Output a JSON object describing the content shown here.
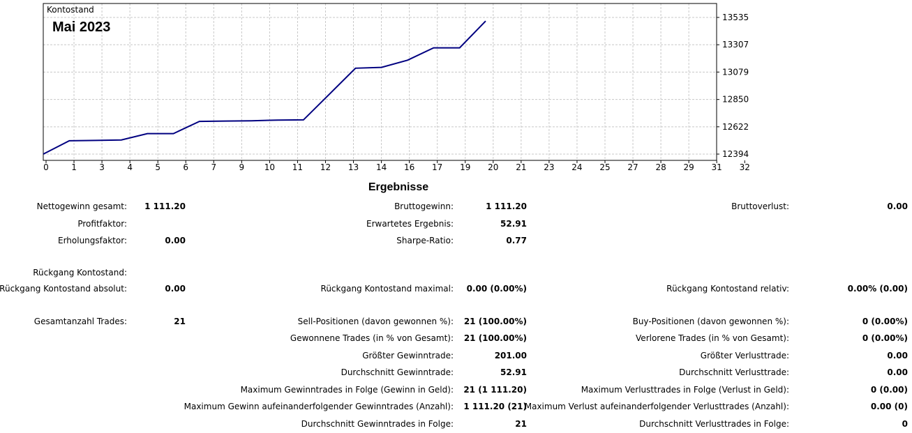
{
  "chart": {
    "caption": "Kontostand",
    "period": "Mai 2023",
    "line_color": "#000080",
    "grid_color": "#c8c8c8"
  },
  "chart_data": {
    "type": "line",
    "title": "Kontostand",
    "subtitle": "Mai 2023",
    "xlim": [
      0,
      32
    ],
    "ylim": [
      12394,
      13535
    ],
    "x_ticks": [
      "0",
      "1",
      "3",
      "4",
      "5",
      "6",
      "7",
      "9",
      "10",
      "11",
      "12",
      "13",
      "14",
      "16",
      "17",
      "19",
      "20",
      "21",
      "23",
      "24",
      "25",
      "27",
      "28",
      "29",
      "31",
      "32"
    ],
    "y_ticks": [
      "13535",
      "13307",
      "13079",
      "12850",
      "12622",
      "12394"
    ],
    "grid": true,
    "series": [
      {
        "values": [
          [
            0,
            12394
          ],
          [
            1,
            12505
          ],
          [
            2,
            12508
          ],
          [
            3,
            12512
          ],
          [
            4,
            12565
          ],
          [
            5,
            12565
          ],
          [
            6,
            12667
          ],
          [
            7,
            12670
          ],
          [
            8,
            12672
          ],
          [
            9,
            12678
          ],
          [
            10,
            12680
          ],
          [
            11,
            12895
          ],
          [
            12,
            13111
          ],
          [
            13,
            13118
          ],
          [
            14,
            13178
          ],
          [
            15,
            13281
          ],
          [
            16,
            13281
          ],
          [
            17,
            13505
          ]
        ]
      }
    ]
  },
  "results": {
    "title": "Ergebnisse",
    "col1": [
      {
        "label": "Nettogewinn gesamt:",
        "value": "1 111.20"
      },
      {
        "label": "Profitfaktor:",
        "value": ""
      },
      {
        "label": "Erholungsfaktor:",
        "value": "0.00"
      },
      {
        "label": "Rückgang Kontostand:",
        "value": ""
      },
      {
        "label": "Rückgang Kontostand absolut:",
        "value": "0.00"
      },
      {
        "label": "Gesamtanzahl Trades:",
        "value": "21"
      }
    ],
    "col2": [
      {
        "label": "Bruttogewinn:",
        "value": "1 111.20"
      },
      {
        "label": "Erwartetes Ergebnis:",
        "value": "52.91"
      },
      {
        "label": "Sharpe-Ratio:",
        "value": "0.77"
      },
      {
        "label": "Rückgang Kontostand maximal:",
        "value": "0.00 (0.00%)"
      },
      {
        "label": "Sell-Positionen (davon gewonnen %):",
        "value": "21 (100.00%)"
      },
      {
        "label": "Gewonnene Trades (in % von Gesamt):",
        "value": "21 (100.00%)"
      },
      {
        "label": "Größter Gewinntrade:",
        "value": "201.00"
      },
      {
        "label": "Durchschnitt Gewinntrade:",
        "value": "52.91"
      },
      {
        "label": "Maximum Gewinntrades in Folge (Gewinn in Geld):",
        "value": "21 (1 111.20)"
      },
      {
        "label": "Maximum Gewinn aufeinanderfolgender Gewinntrades (Anzahl):",
        "value": "1 111.20 (21)"
      },
      {
        "label": "Durchschnitt Gewinntrades in Folge:",
        "value": "21"
      }
    ],
    "col3": [
      {
        "label": "Bruttoverlust:",
        "value": "0.00"
      },
      {
        "label": "Rückgang Kontostand relativ:",
        "value": "0.00% (0.00)"
      },
      {
        "label": "Buy-Positionen (davon gewonnen %):",
        "value": "0 (0.00%)"
      },
      {
        "label": "Verlorene Trades (in % von Gesamt):",
        "value": "0 (0.00%)"
      },
      {
        "label": "Größter Verlusttrade:",
        "value": "0.00"
      },
      {
        "label": "Durchschnitt Verlusttrade:",
        "value": "0.00"
      },
      {
        "label": "Maximum Verlusttrades in Folge (Verlust in Geld):",
        "value": "0 (0.00)"
      },
      {
        "label": "Maximum Verlust aufeinanderfolgender Verlusttrades (Anzahl):",
        "value": "0.00 (0)"
      },
      {
        "label": "Durchschnitt Verlusttrades in Folge:",
        "value": "0"
      }
    ]
  }
}
